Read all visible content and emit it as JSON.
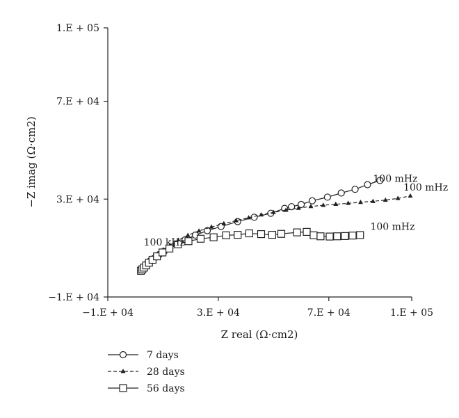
{
  "chart_data": {
    "type": "scatter",
    "xlabel": "Z real (Ω·cm2)",
    "ylabel": "−Z imag (Ω·cm2)",
    "xlim": [
      -10000,
      100000
    ],
    "ylim": [
      -10000,
      100000
    ],
    "x_ticks": [
      -10000,
      30000,
      70000,
      100000
    ],
    "x_tick_labels": [
      "−1.E + 04",
      "3.E + 04",
      "7.E + 04",
      "1.E + 05"
    ],
    "y_ticks": [
      -10000,
      30000,
      70000,
      100000
    ],
    "y_tick_labels": [
      "−1.E + 04",
      "3.E + 04",
      "7.E + 04",
      "1.E + 05"
    ],
    "grid": false,
    "legend_position": "bottom-left",
    "annotations": [
      {
        "text": "100 kHz",
        "x": 3000,
        "y": 11000
      },
      {
        "text": "100 mHz",
        "x": 86000,
        "y": 37000
      },
      {
        "text": "100 mHz",
        "x": 97000,
        "y": 33500
      },
      {
        "text": "100 mHz",
        "x": 85000,
        "y": 17500
      }
    ],
    "series": [
      {
        "name": "7 days",
        "marker": "circle-open",
        "line": "solid",
        "x": [
          2000,
          2300,
          2700,
          3100,
          3500,
          4000,
          4600,
          5300,
          6200,
          7300,
          8700,
          10400,
          12500,
          15000,
          18000,
          21700,
          26000,
          31000,
          37000,
          43000,
          49000,
          54000,
          56500,
          60000,
          64000,
          69500,
          74500,
          79500,
          84000,
          88500
        ],
        "y": [
          1200,
          1500,
          1900,
          2300,
          2800,
          3400,
          4000,
          4700,
          5500,
          6300,
          7400,
          8600,
          10000,
          11600,
          13400,
          15300,
          17100,
          18800,
          20800,
          22600,
          24200,
          26200,
          26900,
          27800,
          29300,
          30800,
          32500,
          34000,
          35900,
          37600
        ]
      },
      {
        "name": "28 days",
        "marker": "triangle-filled",
        "line": "dashed",
        "x": [
          2000,
          2400,
          2900,
          3500,
          4300,
          5300,
          6500,
          8000,
          10000,
          12500,
          15500,
          19000,
          23000,
          27500,
          32000,
          36500,
          41000,
          45500,
          50000,
          54500,
          59000,
          63500,
          68000,
          72500,
          77000,
          81500,
          86000,
          90500,
          95000,
          99500
        ],
        "y": [
          1000,
          1500,
          2100,
          2800,
          3700,
          4800,
          6000,
          7500,
          9300,
          11200,
          13200,
          15200,
          17000,
          18600,
          20000,
          21200,
          22400,
          23600,
          24600,
          25500,
          26300,
          27000,
          27500,
          27900,
          28300,
          28700,
          29100,
          29600,
          30300,
          31300
        ]
      },
      {
        "name": "56 days",
        "marker": "square-open",
        "line": "solid",
        "x": [
          2000,
          2500,
          3100,
          3900,
          4900,
          6200,
          7800,
          9800,
          12300,
          15400,
          19200,
          23600,
          28300,
          32800,
          37000,
          41200,
          45500,
          49500,
          52800,
          58500,
          62000,
          64500,
          67000,
          70300,
          73000,
          75800,
          78600,
          81300
        ],
        "y": [
          700,
          1300,
          2000,
          2900,
          4000,
          5200,
          6600,
          8200,
          9800,
          11500,
          12800,
          13800,
          14400,
          15200,
          15400,
          16000,
          15700,
          15400,
          15800,
          16400,
          16600,
          15200,
          14800,
          14700,
          14800,
          14900,
          15100,
          15300
        ]
      }
    ]
  }
}
